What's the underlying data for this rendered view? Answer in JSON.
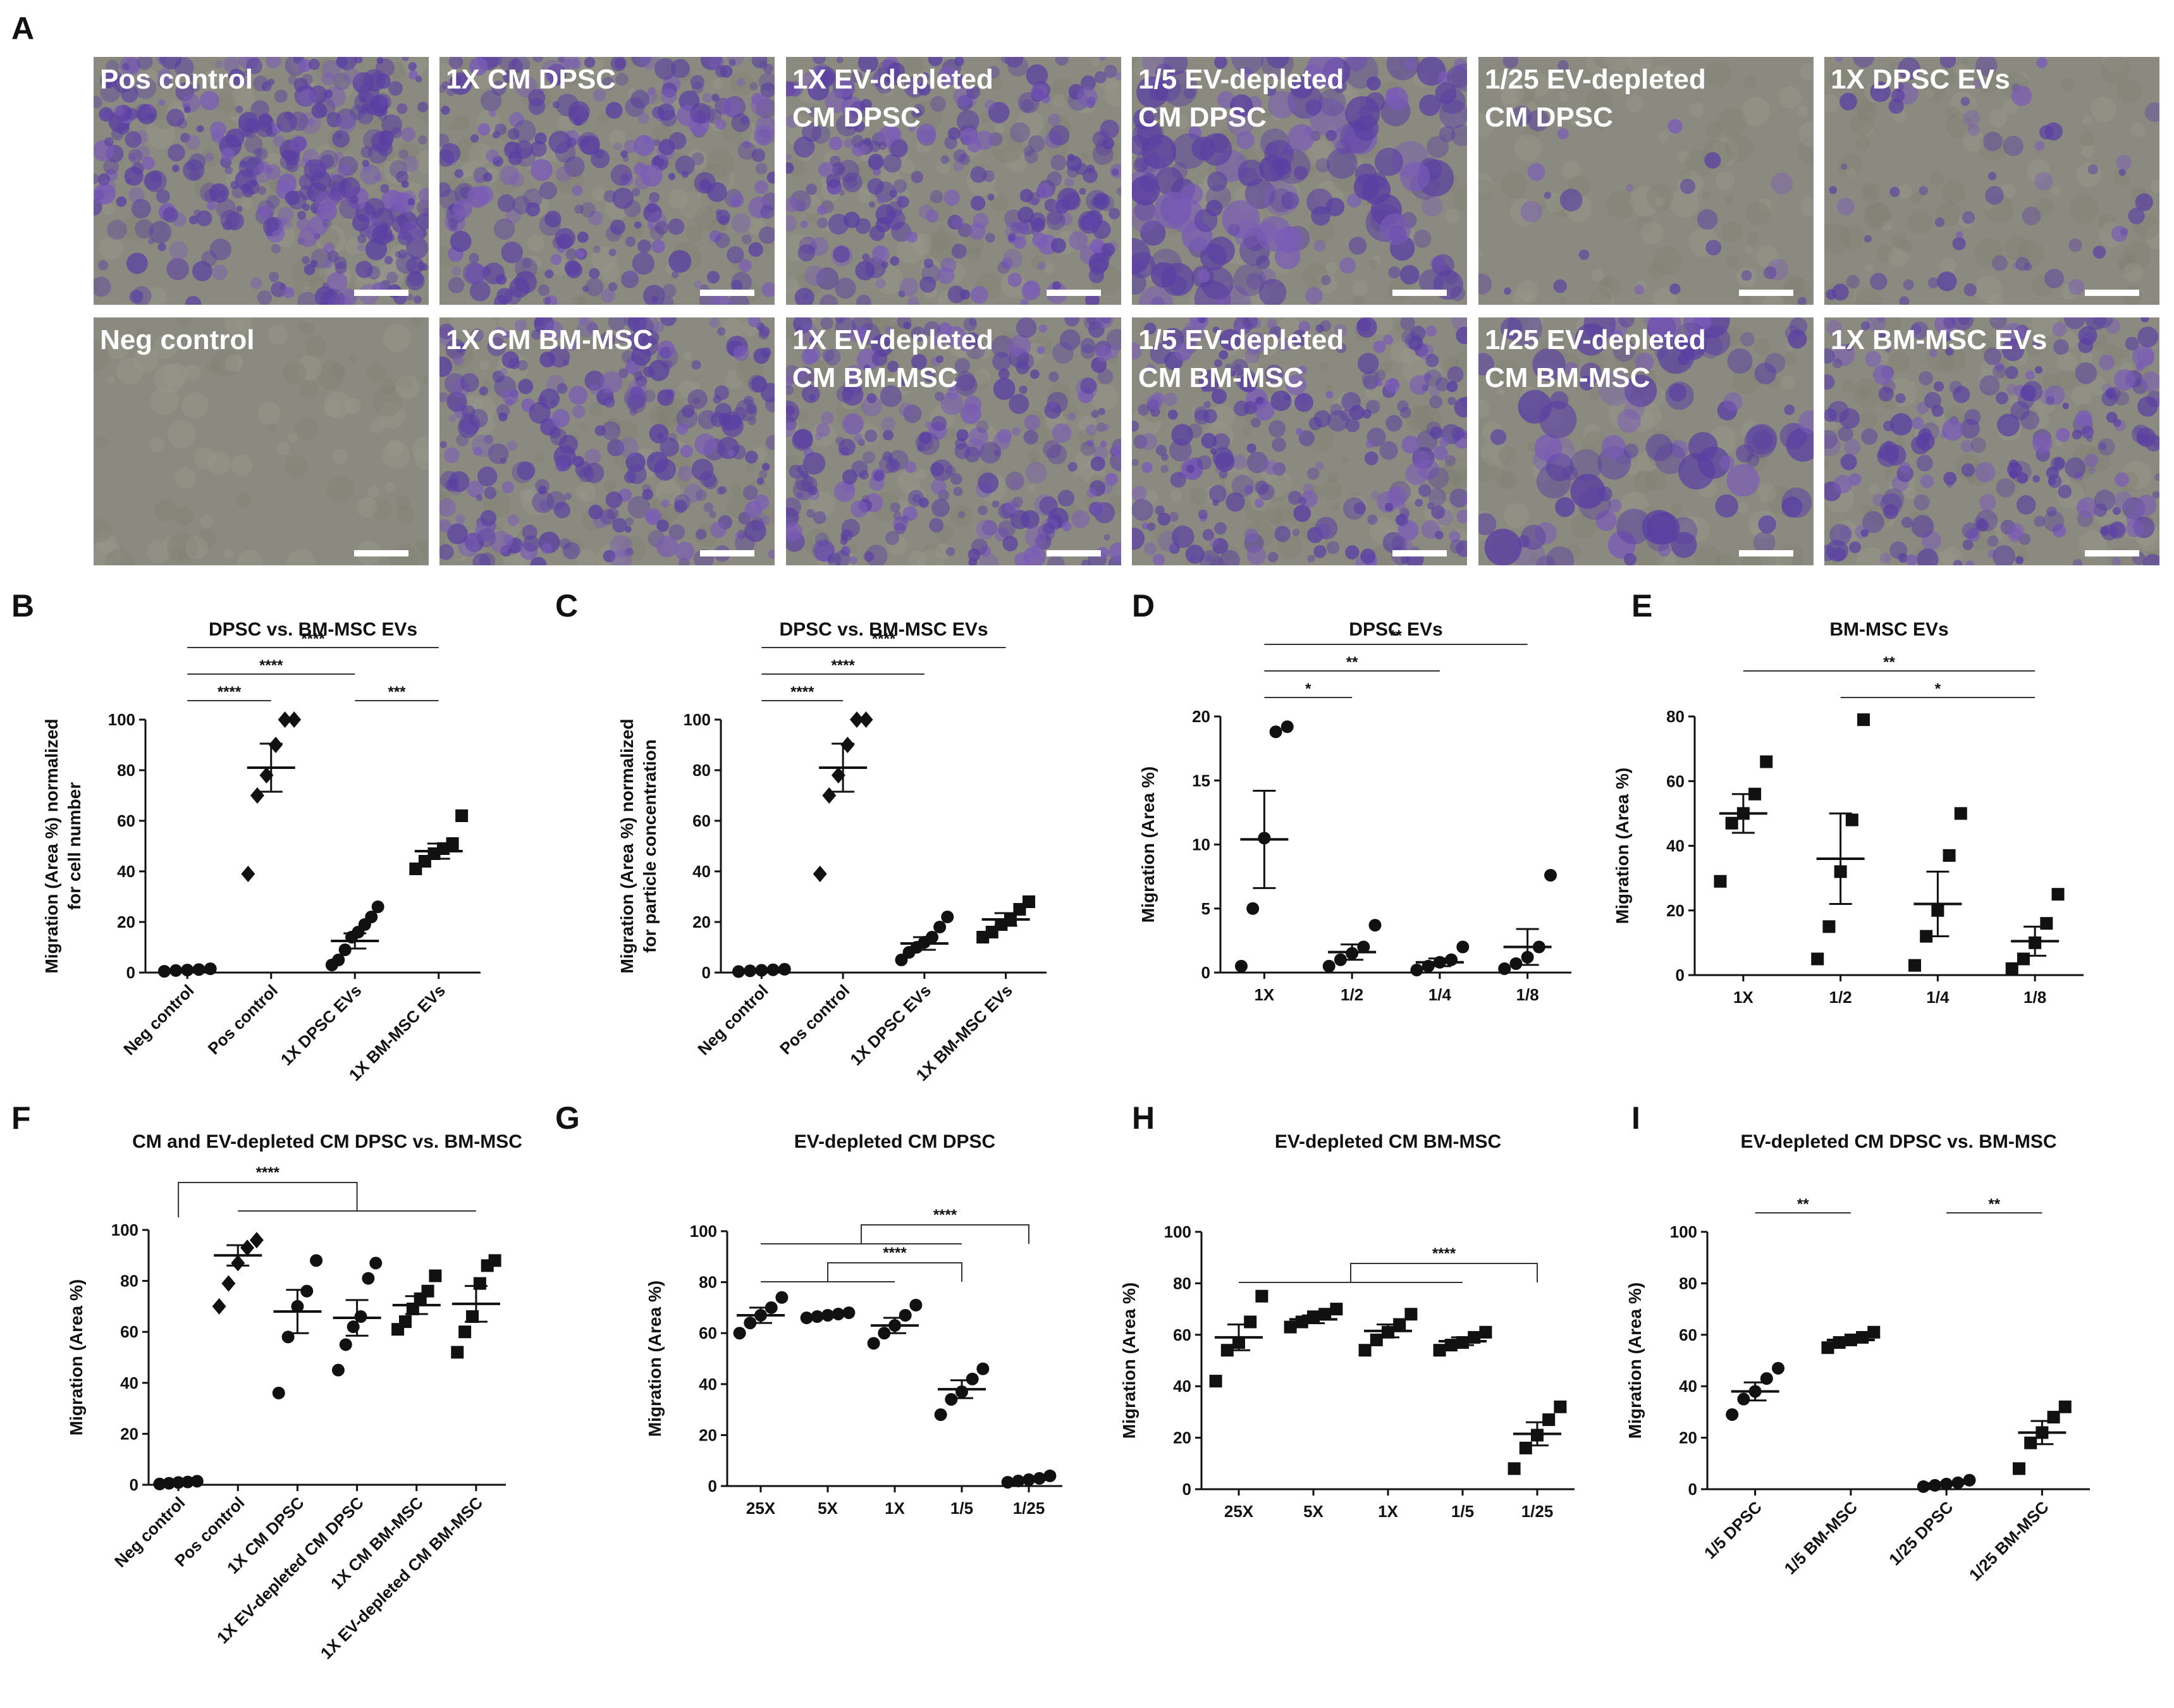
{
  "figure": {
    "panel_A": {
      "letter": "A",
      "scale_bar_color": "#ffffff",
      "stain_color": "#5a3fa3",
      "background_color": "#8a8a80",
      "images": [
        {
          "label": [
            "Pos control"
          ],
          "stain_density": 0.85,
          "texture": "dense"
        },
        {
          "label": [
            "1X CM DPSC"
          ],
          "stain_density": 0.55,
          "texture": "mottled"
        },
        {
          "label": [
            "1X EV-depleted",
            "CM DPSC"
          ],
          "stain_density": 0.55,
          "texture": "mottled"
        },
        {
          "label": [
            "1/5 EV-depleted",
            "CM DPSC"
          ],
          "stain_density": 0.35,
          "texture": "patchy"
        },
        {
          "label": [
            "1/25 EV-depleted",
            "CM DPSC"
          ],
          "stain_density": 0.05,
          "texture": "sparse"
        },
        {
          "label": [
            "1X DPSC EVs"
          ],
          "stain_density": 0.12,
          "texture": "sparse"
        },
        {
          "label": [
            "Neg control"
          ],
          "stain_density": 0.0,
          "texture": "none"
        },
        {
          "label": [
            "1X CM BM-MSC"
          ],
          "stain_density": 0.55,
          "texture": "mottled"
        },
        {
          "label": [
            "1X EV-depleted",
            "CM BM-MSC"
          ],
          "stain_density": 0.55,
          "texture": "mottled"
        },
        {
          "label": [
            "1/5 EV-depleted",
            "CM BM-MSC"
          ],
          "stain_density": 0.5,
          "texture": "mottled"
        },
        {
          "label": [
            "1/25 EV-depleted",
            "CM BM-MSC"
          ],
          "stain_density": 0.2,
          "texture": "patchy"
        },
        {
          "label": [
            "1X BM-MSC EVs"
          ],
          "stain_density": 0.45,
          "texture": "mottled"
        }
      ]
    }
  },
  "chart_data": [
    {
      "panel": "B",
      "type": "scatter",
      "title": "DPSC vs. BM-MSC EVs",
      "ylabel": [
        "Migration (Area %) normalized",
        "for cell number"
      ],
      "ylim": [
        0,
        100
      ],
      "yticks": [
        0,
        20,
        40,
        60,
        80,
        100
      ],
      "categories": [
        "Neg control",
        "Pos control",
        "1X DPSC EVs",
        "1X BM-MSC EVs"
      ],
      "rotate_labels": true,
      "markers": [
        "circle",
        "diamond",
        "circle",
        "square"
      ],
      "points": [
        [
          0.5,
          0.8,
          1.0,
          1.2,
          1.5
        ],
        [
          39,
          70,
          78,
          90,
          100,
          100
        ],
        [
          3,
          5,
          9,
          14,
          16,
          19,
          22,
          26
        ],
        [
          41,
          44,
          47,
          49,
          51,
          62
        ]
      ],
      "means": [
        1.0,
        81,
        12.5,
        48
      ],
      "sems": [
        0.2,
        9.5,
        3,
        3
      ],
      "comparisons": [
        {
          "from": 0,
          "to": 1,
          "label": "****",
          "level": 0
        },
        {
          "from": 0,
          "to": 2,
          "label": "****",
          "level": 1
        },
        {
          "from": 0,
          "to": 3,
          "label": "****",
          "level": 2
        },
        {
          "from": 2,
          "to": 3,
          "label": "***",
          "level": 0
        }
      ]
    },
    {
      "panel": "C",
      "type": "scatter",
      "title": "DPSC vs. BM-MSC EVs",
      "ylabel": [
        "Migration (Area %) normalized",
        "for particle concentration"
      ],
      "ylim": [
        0,
        100
      ],
      "yticks": [
        0,
        20,
        40,
        60,
        80,
        100
      ],
      "categories": [
        "Neg control",
        "Pos control",
        "1X DPSC EVs",
        "1X BM-MSC EVs"
      ],
      "rotate_labels": true,
      "markers": [
        "circle",
        "diamond",
        "circle",
        "square"
      ],
      "points": [
        [
          0.4,
          0.7,
          0.9,
          1.1,
          1.3
        ],
        [
          39,
          70,
          78,
          90,
          100,
          100
        ],
        [
          5,
          8,
          10,
          12,
          14,
          18,
          22
        ],
        [
          14,
          16,
          19,
          21,
          25,
          28
        ]
      ],
      "means": [
        1.0,
        81,
        11.5,
        21
      ],
      "sems": [
        0.2,
        9.5,
        2.5,
        2.5
      ],
      "comparisons": [
        {
          "from": 0,
          "to": 1,
          "label": "****",
          "level": 0
        },
        {
          "from": 0,
          "to": 2,
          "label": "****",
          "level": 1
        },
        {
          "from": 0,
          "to": 3,
          "label": "****",
          "level": 2
        }
      ]
    },
    {
      "panel": "D",
      "type": "scatter",
      "title": "DPSC EVs",
      "ylabel": [
        "Migration (Area %)"
      ],
      "ylim": [
        0,
        20
      ],
      "yticks": [
        0,
        5,
        10,
        15,
        20
      ],
      "categories": [
        "1X",
        "1/2",
        "1/4",
        "1/8"
      ],
      "rotate_labels": false,
      "markers": [
        "circle",
        "circle",
        "circle",
        "circle"
      ],
      "points": [
        [
          0.5,
          5,
          10.5,
          18.8,
          19.2
        ],
        [
          0.5,
          1.0,
          1.5,
          2,
          3.7
        ],
        [
          0.2,
          0.5,
          0.8,
          1.0,
          2
        ],
        [
          0.3,
          0.7,
          1.2,
          2,
          7.6
        ]
      ],
      "means": [
        10.4,
        1.6,
        0.8,
        2.0
      ],
      "sems": [
        3.8,
        0.6,
        0.3,
        1.4
      ],
      "comparisons": [
        {
          "from": 0,
          "to": 1,
          "label": "*",
          "level": 0
        },
        {
          "from": 0,
          "to": 2,
          "label": "**",
          "level": 1
        },
        {
          "from": 0,
          "to": 3,
          "label": "**",
          "level": 2
        }
      ]
    },
    {
      "panel": "E",
      "type": "scatter",
      "title": "BM-MSC EVs",
      "ylabel": [
        "Migration (Area %)"
      ],
      "ylim": [
        0,
        80
      ],
      "yticks": [
        0,
        20,
        40,
        60,
        80
      ],
      "categories": [
        "1X",
        "1/2",
        "1/4",
        "1/8"
      ],
      "rotate_labels": false,
      "markers": [
        "square",
        "square",
        "square",
        "square"
      ],
      "points": [
        [
          29,
          47,
          50,
          56,
          66
        ],
        [
          5,
          15,
          32,
          48,
          79
        ],
        [
          3,
          12,
          20,
          37,
          50
        ],
        [
          2,
          5,
          10,
          16,
          25
        ]
      ],
      "means": [
        50,
        36,
        22,
        10.5
      ],
      "sems": [
        6,
        14,
        10,
        4.5
      ],
      "comparisons": [
        {
          "from": 0,
          "to": 3,
          "label": "**",
          "level": 1
        },
        {
          "from": 1,
          "to": 3,
          "label": "*",
          "level": 0
        }
      ]
    },
    {
      "panel": "F",
      "type": "scatter",
      "title": "CM and EV-depleted CM DPSC vs. BM-MSC",
      "ylabel": [
        "Migration (Area %)"
      ],
      "ylim": [
        0,
        100
      ],
      "yticks": [
        0,
        20,
        40,
        60,
        80,
        100
      ],
      "categories": [
        "Neg control",
        "Pos control",
        "1X CM DPSC",
        "1X EV-depleted CM DPSC",
        "1X CM BM-MSC",
        "1X EV-depleted CM BM-MSC"
      ],
      "rotate_labels": true,
      "markers": [
        "circle",
        "diamond",
        "circle",
        "circle",
        "square",
        "square"
      ],
      "points": [
        [
          0.3,
          0.6,
          0.9,
          1.1,
          1.4
        ],
        [
          70,
          79,
          87,
          93,
          96
        ],
        [
          36,
          58,
          70,
          76,
          88
        ],
        [
          45,
          55,
          62,
          66,
          81,
          87
        ],
        [
          61,
          64,
          69,
          73,
          76,
          82
        ],
        [
          52,
          60,
          66,
          79,
          86,
          88
        ]
      ],
      "means": [
        0.9,
        90,
        68,
        65.5,
        70.5,
        71
      ],
      "sems": [
        0.2,
        4,
        8.5,
        7,
        3.5,
        7
      ],
      "comparisons": [],
      "group_bracket": {
        "left": 0,
        "right_start": 1,
        "right_end": 5,
        "label": "****"
      }
    },
    {
      "panel": "G",
      "type": "scatter",
      "title": "EV-depleted CM DPSC",
      "ylabel": [
        "Migration (Area %)"
      ],
      "ylim": [
        0,
        100
      ],
      "yticks": [
        0,
        20,
        40,
        60,
        80,
        100
      ],
      "categories": [
        "25X",
        "5X",
        "1X",
        "1/5",
        "1/25"
      ],
      "rotate_labels": false,
      "markers": [
        "circle",
        "circle",
        "circle",
        "circle",
        "circle"
      ],
      "points": [
        [
          60,
          64,
          67,
          70,
          74
        ],
        [
          66,
          66.5,
          67,
          67.5,
          68
        ],
        [
          56,
          60,
          63,
          67,
          71
        ],
        [
          28,
          34,
          37,
          42,
          46
        ],
        [
          1.5,
          2.0,
          2.5,
          3.0,
          4.0
        ]
      ],
      "means": [
        67,
        67,
        63,
        38,
        2.5
      ],
      "sems": [
        3,
        0.5,
        3,
        3.5,
        0.5
      ],
      "comparisons": [],
      "nested_brackets": [
        {
          "bar_x": [
            0,
            1.8
          ],
          "left": 0,
          "right": 2,
          "target": 3,
          "label": "****",
          "level": 0
        },
        {
          "bar_x": [
            0,
            3.2
          ],
          "left": 0,
          "right": 3,
          "target": 4,
          "label": "****",
          "level": 1
        }
      ]
    },
    {
      "panel": "H",
      "type": "scatter",
      "title": "EV-depleted CM BM-MSC",
      "ylabel": [
        "Migration (Area %)"
      ],
      "ylim": [
        0,
        100
      ],
      "yticks": [
        0,
        20,
        40,
        60,
        80,
        100
      ],
      "categories": [
        "25X",
        "5X",
        "1X",
        "1/5",
        "1/25"
      ],
      "rotate_labels": false,
      "markers": [
        "square",
        "square",
        "square",
        "square",
        "square"
      ],
      "points": [
        [
          42,
          54,
          57,
          65,
          75
        ],
        [
          63,
          65,
          67,
          68,
          70
        ],
        [
          54,
          58,
          61,
          64,
          68
        ],
        [
          54,
          56,
          57,
          59,
          61
        ],
        [
          8,
          16,
          21,
          27,
          32
        ]
      ],
      "means": [
        59,
        66,
        61.5,
        57.5,
        21.5
      ],
      "sems": [
        5,
        1.5,
        2.5,
        1.5,
        4.5
      ],
      "comparisons": [],
      "nested_brackets": [
        {
          "bar_x": [
            0,
            3.0
          ],
          "left": 0,
          "right": 3,
          "target": 4,
          "label": "****",
          "level": 0
        }
      ]
    },
    {
      "panel": "I",
      "type": "scatter",
      "title": "EV-depleted CM DPSC vs. BM-MSC",
      "ylabel": [
        "Migration (Area %)"
      ],
      "ylim": [
        0,
        100
      ],
      "yticks": [
        0,
        20,
        40,
        60,
        80,
        100
      ],
      "categories": [
        "1/5 DPSC",
        "1/5 BM-MSC",
        "1/25 DPSC",
        "1/25 BM-MSC"
      ],
      "rotate_labels": true,
      "markers": [
        "circle",
        "square",
        "circle",
        "square"
      ],
      "points": [
        [
          29,
          35,
          38,
          43,
          47
        ],
        [
          55,
          57,
          58,
          59,
          61
        ],
        [
          1.0,
          1.5,
          2.0,
          2.5,
          3.5
        ],
        [
          8,
          18,
          22,
          28,
          32
        ]
      ],
      "means": [
        38,
        58,
        2.2,
        22
      ],
      "sems": [
        3.5,
        1,
        0.5,
        4.5
      ],
      "comparisons": [
        {
          "from": 0,
          "to": 1,
          "label": "**",
          "level": 0
        },
        {
          "from": 2,
          "to": 3,
          "label": "**",
          "level": 0
        }
      ]
    }
  ]
}
